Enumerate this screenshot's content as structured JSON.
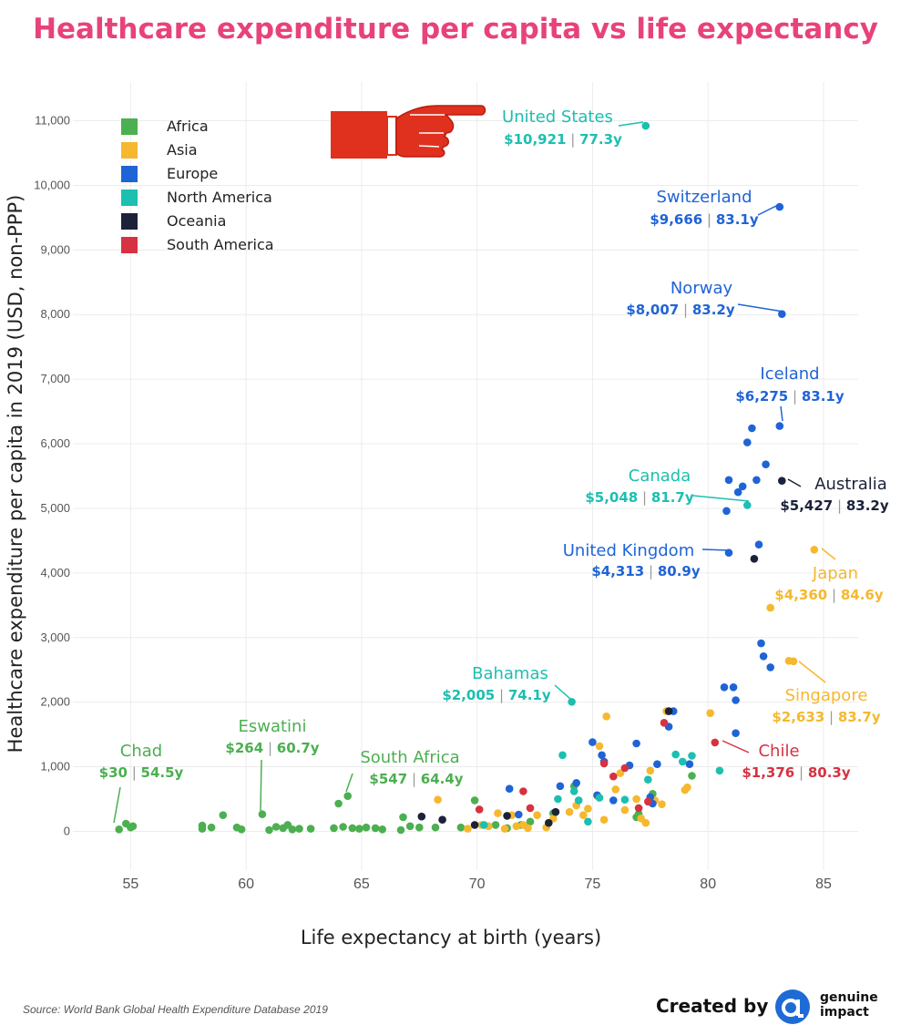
{
  "chart_data": {
    "type": "scatter",
    "title": "Healthcare expenditure per capita vs life expectancy",
    "xlabel": "Life expectancy at birth (years)",
    "ylabel": "Healthcare expenditure per capita in 2019 (USD, non-PPP)",
    "xlim": [
      52.5,
      86.5
    ],
    "ylim": [
      -600,
      11600
    ],
    "xticks": [
      55,
      60,
      65,
      70,
      75,
      80,
      85
    ],
    "yticks": [
      0,
      1000,
      2000,
      3000,
      4000,
      5000,
      6000,
      7000,
      8000,
      9000,
      10000,
      11000
    ],
    "ytick_labels": [
      "0",
      "1,000",
      "2,000",
      "3,000",
      "4,000",
      "5,000",
      "6,000",
      "7,000",
      "8,000",
      "9,000",
      "10,000",
      "11,000"
    ],
    "grid": true,
    "legend_position": "top-left",
    "series": [
      {
        "name": "Africa",
        "color": "#4caf50",
        "points": [
          [
            54.5,
            30
          ],
          [
            54.8,
            120
          ],
          [
            55.0,
            60
          ],
          [
            55.1,
            80
          ],
          [
            58.1,
            40
          ],
          [
            58.1,
            90
          ],
          [
            58.5,
            60
          ],
          [
            59.0,
            250
          ],
          [
            59.6,
            60
          ],
          [
            59.8,
            30
          ],
          [
            60.7,
            264
          ],
          [
            61.0,
            20
          ],
          [
            61.3,
            70
          ],
          [
            61.6,
            50
          ],
          [
            61.8,
            100
          ],
          [
            62.0,
            30
          ],
          [
            62.3,
            40
          ],
          [
            62.8,
            40
          ],
          [
            63.8,
            50
          ],
          [
            64.0,
            430
          ],
          [
            64.2,
            70
          ],
          [
            64.4,
            547
          ],
          [
            64.6,
            50
          ],
          [
            64.9,
            40
          ],
          [
            65.2,
            60
          ],
          [
            65.6,
            50
          ],
          [
            65.9,
            30
          ],
          [
            66.7,
            20
          ],
          [
            66.8,
            220
          ],
          [
            67.1,
            80
          ],
          [
            67.5,
            60
          ],
          [
            68.2,
            60
          ],
          [
            69.3,
            60
          ],
          [
            69.9,
            480
          ],
          [
            70.8,
            100
          ],
          [
            71.3,
            50
          ],
          [
            71.9,
            100
          ],
          [
            72.3,
            150
          ],
          [
            73.3,
            280
          ],
          [
            74.2,
            700
          ],
          [
            76.9,
            220
          ],
          [
            77.0,
            270
          ],
          [
            77.6,
            580
          ],
          [
            79.3,
            860
          ]
        ]
      },
      {
        "name": "Asia",
        "color": "#f5b82e",
        "points": [
          [
            68.3,
            490
          ],
          [
            69.6,
            40
          ],
          [
            70.2,
            100
          ],
          [
            70.5,
            80
          ],
          [
            70.9,
            280
          ],
          [
            71.2,
            40
          ],
          [
            71.5,
            250
          ],
          [
            71.7,
            80
          ],
          [
            72.0,
            100
          ],
          [
            72.2,
            50
          ],
          [
            72.6,
            250
          ],
          [
            73.0,
            60
          ],
          [
            73.3,
            200
          ],
          [
            74.0,
            300
          ],
          [
            74.3,
            400
          ],
          [
            74.6,
            250
          ],
          [
            74.8,
            350
          ],
          [
            75.2,
            550
          ],
          [
            75.3,
            1320
          ],
          [
            75.5,
            180
          ],
          [
            75.6,
            1780
          ],
          [
            76.0,
            650
          ],
          [
            76.2,
            900
          ],
          [
            76.4,
            330
          ],
          [
            76.9,
            500
          ],
          [
            77.1,
            200
          ],
          [
            77.3,
            130
          ],
          [
            77.5,
            940
          ],
          [
            77.7,
            480
          ],
          [
            78.0,
            420
          ],
          [
            78.2,
            1860
          ],
          [
            79.0,
            640
          ],
          [
            79.1,
            680
          ],
          [
            80.1,
            1830
          ],
          [
            82.7,
            3460
          ],
          [
            83.5,
            2640
          ],
          [
            83.7,
            2633
          ],
          [
            84.6,
            4360
          ]
        ]
      },
      {
        "name": "Europe",
        "color": "#1f64d6",
        "points": [
          [
            71.4,
            660
          ],
          [
            71.8,
            260
          ],
          [
            73.6,
            700
          ],
          [
            74.3,
            750
          ],
          [
            75.0,
            1380
          ],
          [
            75.2,
            560
          ],
          [
            75.4,
            1180
          ],
          [
            75.5,
            1080
          ],
          [
            75.9,
            480
          ],
          [
            76.6,
            1020
          ],
          [
            76.9,
            1360
          ],
          [
            77.5,
            530
          ],
          [
            77.6,
            430
          ],
          [
            77.8,
            1040
          ],
          [
            78.3,
            1620
          ],
          [
            78.5,
            1860
          ],
          [
            79.2,
            1040
          ],
          [
            80.7,
            2230
          ],
          [
            80.9,
            4313
          ],
          [
            81.1,
            2230
          ],
          [
            81.2,
            1520
          ],
          [
            81.2,
            2030
          ],
          [
            81.3,
            5250
          ],
          [
            81.5,
            5340
          ],
          [
            81.7,
            6020
          ],
          [
            81.9,
            6240
          ],
          [
            82.1,
            5440
          ],
          [
            82.2,
            4440
          ],
          [
            82.3,
            2910
          ],
          [
            82.4,
            2710
          ],
          [
            82.5,
            5680
          ],
          [
            82.7,
            2540
          ],
          [
            83.1,
            6275
          ],
          [
            83.1,
            9666
          ],
          [
            83.2,
            8007
          ],
          [
            80.9,
            5440
          ],
          [
            80.8,
            4960
          ]
        ]
      },
      {
        "name": "North America",
        "color": "#1cbfb0",
        "points": [
          [
            70.3,
            100
          ],
          [
            73.5,
            500
          ],
          [
            73.7,
            1180
          ],
          [
            74.1,
            2005
          ],
          [
            74.2,
            620
          ],
          [
            74.4,
            480
          ],
          [
            74.8,
            150
          ],
          [
            75.3,
            520
          ],
          [
            76.4,
            490
          ],
          [
            77.3,
            10921
          ],
          [
            77.4,
            800
          ],
          [
            78.6,
            1190
          ],
          [
            78.9,
            1080
          ],
          [
            79.3,
            1170
          ],
          [
            80.5,
            940
          ],
          [
            81.7,
            5048
          ]
        ]
      },
      {
        "name": "Oceania",
        "color": "#1c2239",
        "points": [
          [
            67.6,
            230
          ],
          [
            68.5,
            180
          ],
          [
            69.9,
            100
          ],
          [
            71.3,
            240
          ],
          [
            73.1,
            130
          ],
          [
            73.4,
            300
          ],
          [
            78.3,
            1860
          ],
          [
            82.0,
            4220
          ],
          [
            83.2,
            5427
          ]
        ]
      },
      {
        "name": "South America",
        "color": "#d63241",
        "points": [
          [
            70.1,
            340
          ],
          [
            72.0,
            620
          ],
          [
            72.3,
            360
          ],
          [
            75.5,
            1050
          ],
          [
            75.9,
            850
          ],
          [
            76.4,
            980
          ],
          [
            77.0,
            360
          ],
          [
            77.4,
            460
          ],
          [
            78.1,
            1680
          ],
          [
            80.3,
            1376
          ]
        ]
      }
    ],
    "annotations": [
      {
        "name": "United States",
        "value": "$10,921",
        "life": "77.3y",
        "series": "North America"
      },
      {
        "name": "Switzerland",
        "value": "$9,666",
        "life": "83.1y",
        "series": "Europe"
      },
      {
        "name": "Norway",
        "value": "$8,007",
        "life": "83.2y",
        "series": "Europe"
      },
      {
        "name": "Iceland",
        "value": "$6,275",
        "life": "83.1y",
        "series": "Europe"
      },
      {
        "name": "Canada",
        "value": "$5,048",
        "life": "81.7y",
        "series": "North America"
      },
      {
        "name": "Australia",
        "value": "$5,427",
        "life": "83.2y",
        "series": "Oceania"
      },
      {
        "name": "United Kingdom",
        "value": "$4,313",
        "life": "80.9y",
        "series": "Europe"
      },
      {
        "name": "Japan",
        "value": "$4,360",
        "life": "84.6y",
        "series": "Asia"
      },
      {
        "name": "Singapore",
        "value": "$2,633",
        "life": "83.7y",
        "series": "Asia"
      },
      {
        "name": "Bahamas",
        "value": "$2,005",
        "life": "74.1y",
        "series": "North America"
      },
      {
        "name": "Chile",
        "value": "$1,376",
        "life": "80.3y",
        "series": "South America"
      },
      {
        "name": "Eswatini",
        "value": "$264",
        "life": "60.7y",
        "series": "Africa"
      },
      {
        "name": "South Africa",
        "value": "$547",
        "life": "64.4y",
        "series": "Africa"
      },
      {
        "name": "Chad",
        "value": "$30",
        "life": "54.5y",
        "series": "Africa"
      }
    ]
  },
  "footer": {
    "source": "Source: World Bank Global Health Expenditure Database 2019",
    "credit": "Created by",
    "brand_line1": "genuine",
    "brand_line2": "impact"
  },
  "colors": {
    "title": "#e8427a",
    "pointer_hand": "#e0301e",
    "brand": "#1f6bd6"
  },
  "icons": {
    "pointer": "pointing-hand-icon",
    "brand": "genuine-impact-logo-icon"
  }
}
